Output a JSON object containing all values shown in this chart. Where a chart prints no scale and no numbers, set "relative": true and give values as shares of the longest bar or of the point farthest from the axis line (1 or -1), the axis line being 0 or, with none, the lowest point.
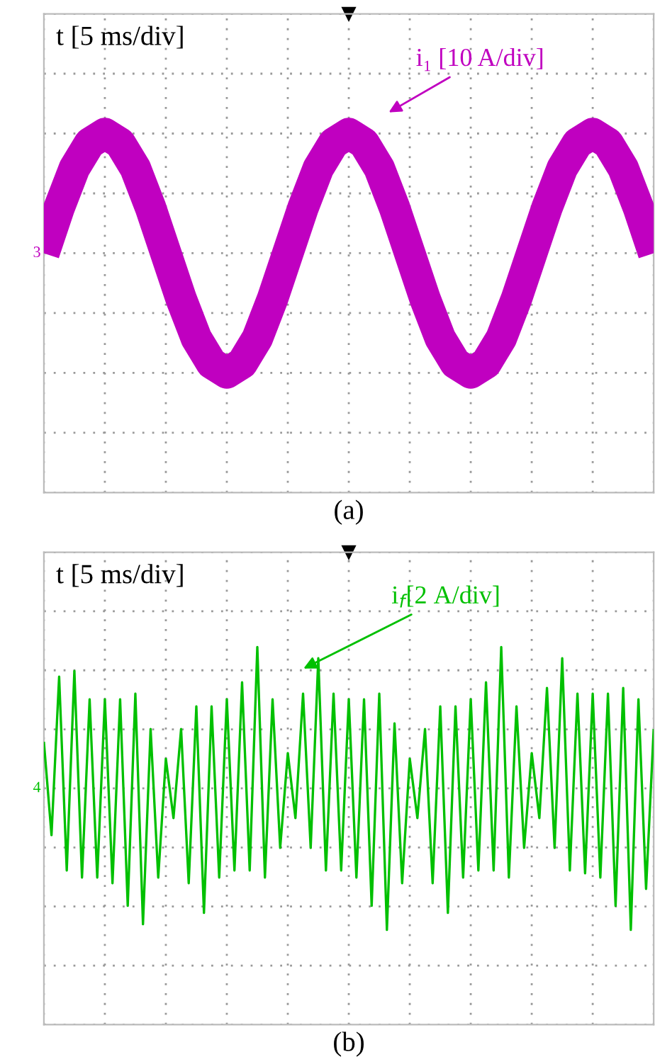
{
  "chart_data": [
    {
      "type": "line",
      "relative": true,
      "xlabel": "t [5 ms/div]",
      "grid": true,
      "tick_labels": false,
      "legend": false,
      "categories": [
        null,
        null,
        null,
        null,
        null,
        null,
        null,
        null,
        null,
        null,
        null,
        null,
        null,
        null,
        null,
        null,
        null,
        null,
        null,
        null,
        null,
        null,
        null,
        null,
        null,
        null,
        null,
        null,
        null,
        null,
        null,
        null,
        null,
        null,
        null,
        null,
        null,
        null,
        null,
        null,
        null
      ],
      "annotations": [
        "3",
        "(a)"
      ],
      "series": [
        {
          "name": "i₁ [10 A/div]",
          "color": "#c000c0",
          "values": [
            0,
            0.38,
            0.71,
            0.92,
            1,
            0.92,
            0.71,
            0.38,
            0,
            -0.38,
            -0.71,
            -0.92,
            -1,
            -0.92,
            -0.71,
            -0.38,
            0,
            0.38,
            0.71,
            0.92,
            1,
            0.92,
            0.71,
            0.38,
            0,
            -0.38,
            -0.71,
            -0.92,
            -1,
            -0.92,
            -0.71,
            -0.38,
            0,
            0.38,
            0.71,
            0.92,
            1,
            0.92,
            0.71,
            0.38,
            0
          ]
        }
      ]
    },
    {
      "type": "line",
      "relative": true,
      "xlabel": "t [5 ms/div]",
      "grid": true,
      "tick_labels": false,
      "legend": false,
      "categories": [
        null,
        null,
        null,
        null,
        null,
        null,
        null,
        null,
        null,
        null,
        null,
        null,
        null,
        null,
        null,
        null,
        null,
        null,
        null,
        null,
        null,
        null,
        null,
        null,
        null,
        null,
        null,
        null,
        null,
        null,
        null,
        null,
        null,
        null,
        null,
        null,
        null,
        null,
        null,
        null,
        null,
        null,
        null,
        null,
        null,
        null,
        null,
        null,
        null,
        null,
        null,
        null,
        null,
        null,
        null,
        null,
        null,
        null,
        null,
        null,
        null,
        null,
        null,
        null,
        null,
        null,
        null,
        null,
        null,
        null,
        null,
        null,
        null,
        null,
        null,
        null,
        null,
        null,
        null,
        null,
        null
      ],
      "annotations": [
        "4",
        "(b)"
      ],
      "series": [
        {
          "name": "i$_{f}$[2 A/div]",
          "color": "#00c000",
          "values": [
            0.33,
            -0.33,
            0.79,
            -0.58,
            0.83,
            -0.63,
            0.63,
            -0.63,
            0.63,
            -0.67,
            0.63,
            -0.83,
            0.67,
            -0.96,
            0.42,
            -0.63,
            0.21,
            -0.21,
            0.42,
            -0.67,
            0.58,
            -0.88,
            0.58,
            -0.63,
            0.63,
            -0.58,
            0.75,
            -0.58,
            1,
            -0.63,
            0.63,
            -0.42,
            0.25,
            -0.21,
            0.67,
            -0.42,
            0.92,
            -0.58,
            0.67,
            -0.58,
            0.63,
            -0.63,
            0.63,
            -0.83,
            0.67,
            -1,
            0.46,
            -0.67,
            0.21,
            -0.21,
            0.42,
            -0.67,
            0.58,
            -0.88,
            0.58,
            -0.63,
            0.63,
            -0.58,
            0.75,
            -0.58,
            1,
            -0.63,
            0.58,
            -0.42,
            0.25,
            -0.21,
            0.71,
            -0.42,
            0.92,
            -0.58,
            0.67,
            -0.6,
            0.67,
            -0.63,
            0.67,
            -0.83,
            0.71,
            -1,
            0.63,
            -0.71,
            0.42
          ]
        }
      ]
    }
  ]
}
